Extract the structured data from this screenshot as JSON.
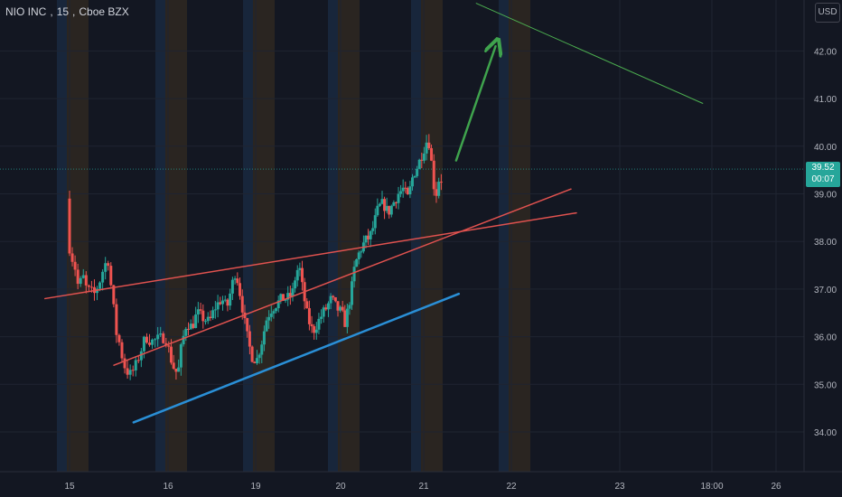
{
  "header": {
    "symbol": "NIO INC",
    "interval": "15",
    "exchange": "Cboe BZX",
    "currency": "USD"
  },
  "last_price": {
    "value": "39.52",
    "countdown": "00:07"
  },
  "colors": {
    "background": "#131722",
    "up": "#26a69a",
    "down": "#ef5350",
    "trend_red": "#e0524f",
    "trend_blue": "#2a8fd6",
    "arrow": "#3fa34d",
    "green_line": "#4caf50",
    "session_blue": "#1e3350",
    "session_orange": "#3a2e22"
  },
  "chart_data": {
    "type": "candlestick",
    "y_axis_ticks": [
      34.0,
      35.0,
      36.0,
      37.0,
      38.0,
      39.0,
      40.0,
      41.0,
      42.0
    ],
    "y_axis_labels": [
      "34.00",
      "35.00",
      "36.00",
      "37.00",
      "38.00",
      "39.00",
      "40.00",
      "41.00",
      "42.00"
    ],
    "ylim": [
      33.0,
      43.0
    ],
    "x_axis_labels": [
      "15",
      "16",
      "19",
      "20",
      "21",
      "22",
      "23",
      "18:00",
      "26"
    ],
    "price_path": [
      [
        0,
        38.9
      ],
      [
        0.03,
        37.8
      ],
      [
        0.08,
        37.5
      ],
      [
        0.12,
        37.0
      ],
      [
        0.16,
        37.3
      ],
      [
        0.2,
        37.0
      ],
      [
        0.28,
        36.9
      ],
      [
        0.34,
        37.2
      ],
      [
        0.38,
        37.5
      ],
      [
        0.42,
        37.6
      ],
      [
        0.44,
        37.2
      ],
      [
        0.46,
        36.9
      ],
      [
        0.5,
        36.1
      ],
      [
        0.53,
        35.9
      ],
      [
        0.57,
        35.5
      ],
      [
        0.6,
        35.3
      ],
      [
        0.65,
        35.2
      ],
      [
        0.7,
        35.4
      ],
      [
        0.75,
        35.7
      ],
      [
        0.8,
        36.0
      ],
      [
        0.86,
        35.9
      ],
      [
        1.0,
        36.0
      ],
      [
        1.08,
        35.4
      ],
      [
        1.14,
        35.2
      ],
      [
        1.18,
        35.8
      ],
      [
        1.24,
        36.3
      ],
      [
        1.3,
        36.2
      ],
      [
        1.36,
        36.5
      ],
      [
        1.42,
        36.4
      ],
      [
        1.5,
        36.3
      ],
      [
        1.56,
        36.6
      ],
      [
        1.64,
        36.8
      ],
      [
        1.7,
        36.6
      ],
      [
        1.76,
        37.1
      ],
      [
        1.8,
        37.4
      ],
      [
        1.86,
        36.8
      ],
      [
        1.92,
        36.1
      ],
      [
        1.98,
        35.6
      ],
      [
        2.04,
        35.5
      ],
      [
        2.1,
        35.9
      ],
      [
        2.16,
        36.4
      ],
      [
        2.22,
        36.6
      ],
      [
        2.28,
        36.7
      ],
      [
        2.34,
        36.8
      ],
      [
        2.4,
        36.8
      ],
      [
        2.46,
        36.9
      ],
      [
        2.5,
        37.3
      ],
      [
        2.54,
        37.5
      ],
      [
        2.58,
        37.0
      ],
      [
        2.64,
        36.4
      ],
      [
        2.7,
        36.1
      ],
      [
        2.76,
        36.3
      ],
      [
        2.82,
        36.5
      ],
      [
        2.86,
        36.6
      ],
      [
        2.92,
        36.8
      ],
      [
        2.98,
        36.6
      ],
      [
        3.04,
        36.5
      ],
      [
        3.08,
        36.3
      ],
      [
        3.12,
        36.6
      ],
      [
        3.16,
        37.0
      ],
      [
        3.2,
        37.5
      ],
      [
        3.26,
        37.8
      ],
      [
        3.32,
        38.0
      ],
      [
        3.38,
        38.1
      ],
      [
        3.42,
        38.3
      ],
      [
        3.48,
        38.7
      ],
      [
        3.54,
        38.8
      ],
      [
        3.6,
        38.6
      ],
      [
        3.66,
        38.8
      ],
      [
        3.72,
        39.0
      ],
      [
        3.78,
        39.1
      ],
      [
        3.84,
        38.9
      ],
      [
        3.9,
        39.4
      ],
      [
        3.96,
        39.6
      ],
      [
        4.02,
        39.9
      ],
      [
        4.08,
        40.2
      ],
      [
        4.12,
        39.6
      ],
      [
        4.16,
        38.9
      ],
      [
        4.2,
        39.3
      ]
    ],
    "session_shading_days": [
      0,
      1,
      2,
      3,
      4,
      5
    ],
    "annotations": [
      {
        "name": "red-upper-trendline",
        "kind": "line",
        "points": [
          [
            -0.25,
            36.8
          ],
          [
            5.6,
            38.6
          ]
        ]
      },
      {
        "name": "red-channel-trendline",
        "kind": "line",
        "points": [
          [
            0.45,
            35.4
          ],
          [
            5.55,
            39.1
          ]
        ]
      },
      {
        "name": "blue-support-trendline",
        "kind": "line",
        "points": [
          [
            0.65,
            34.2
          ],
          [
            4.4,
            36.9
          ]
        ]
      },
      {
        "name": "green-long-line",
        "kind": "line",
        "points": [
          [
            4.6,
            43.0
          ],
          [
            6.9,
            40.9
          ]
        ]
      },
      {
        "name": "green-arrow",
        "kind": "arrow",
        "points": [
          [
            4.37,
            39.7
          ],
          [
            4.82,
            42.1
          ]
        ]
      }
    ]
  }
}
